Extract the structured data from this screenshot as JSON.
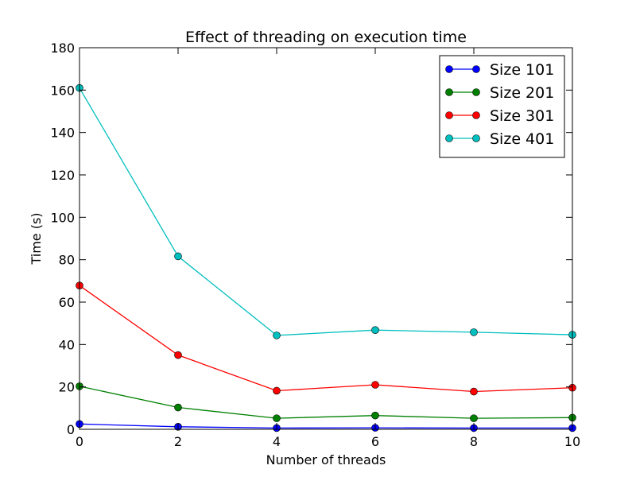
{
  "chart_data": {
    "type": "line",
    "title": "Effect of threading on execution time",
    "xlabel": "Number of threads",
    "ylabel": "Time (s)",
    "xlim": [
      0,
      10
    ],
    "ylim": [
      0,
      180
    ],
    "x_ticks": [
      "0",
      "2",
      "4",
      "6",
      "8",
      "10"
    ],
    "y_ticks": [
      "0",
      "20",
      "40",
      "60",
      "80",
      "100",
      "120",
      "140",
      "160",
      "180"
    ],
    "x": [
      0,
      2,
      4,
      6,
      8,
      10
    ],
    "grid": false,
    "legend_position": "top-right",
    "series": [
      {
        "name": "Size 101",
        "color": "#0000ff",
        "values": [
          2.5,
          1.2,
          0.6,
          0.7,
          0.6,
          0.6
        ]
      },
      {
        "name": "Size 201",
        "color": "#008000",
        "values": [
          20.3,
          10.3,
          5.2,
          6.5,
          5.2,
          5.5
        ]
      },
      {
        "name": "Size 301",
        "color": "#ff0000",
        "values": [
          67.8,
          35.0,
          18.2,
          21.0,
          17.8,
          19.6
        ]
      },
      {
        "name": "Size 401",
        "color": "#00bfbf",
        "values": [
          161.0,
          81.6,
          44.3,
          46.8,
          45.8,
          44.6
        ]
      }
    ]
  }
}
